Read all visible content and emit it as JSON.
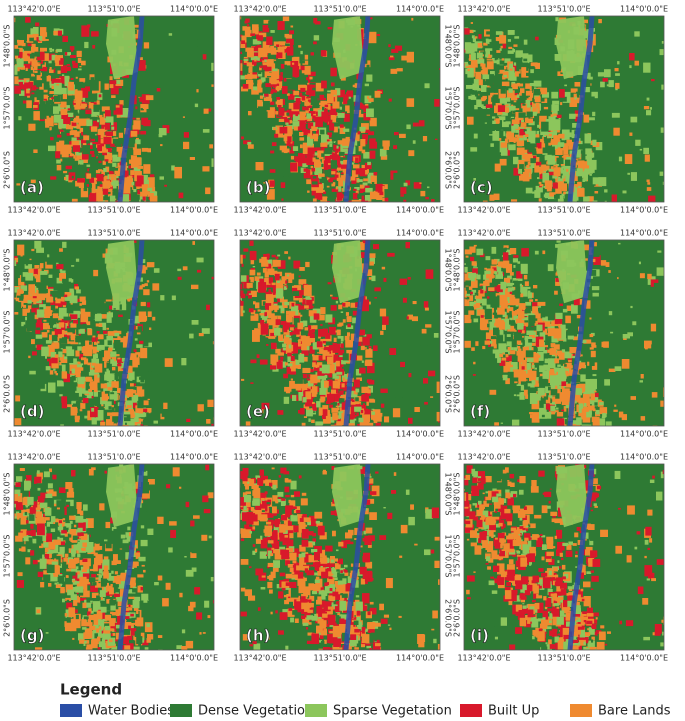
{
  "lon_labels": [
    "113°42'0.0\"E",
    "113°51'0.0\"E",
    "114°0'0.0\"E"
  ],
  "lat_labels": [
    "1°48'0.0\"S",
    "1°57'0.0\"S",
    "2°6'0.0\"S"
  ],
  "panels": [
    "(a)",
    "(b)",
    "(c)",
    "(d)",
    "(e)",
    "(f)",
    "(g)",
    "(h)",
    "(i)"
  ],
  "legend": {
    "title": "Legend",
    "items": [
      {
        "label": "Water Bodies",
        "color": "#2a4ea6"
      },
      {
        "label": "Dense Vegetation",
        "color": "#2e7a34"
      },
      {
        "label": "Sparse Vegetation",
        "color": "#8cc65c"
      },
      {
        "label": "Built Up",
        "color": "#d8192b"
      },
      {
        "label": "Bare Lands",
        "color": "#ef8a30"
      }
    ]
  }
}
